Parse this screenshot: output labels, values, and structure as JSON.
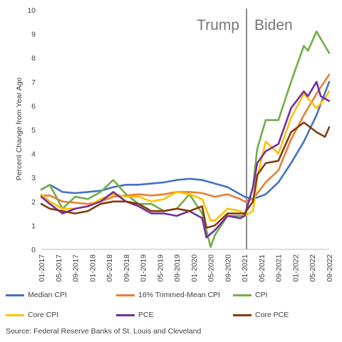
{
  "chart_data": {
    "type": "line",
    "title": "",
    "xlabel": "",
    "ylabel": "Percent Change from Year Ago",
    "ylim": [
      0,
      10
    ],
    "yticks": [
      0,
      1,
      2,
      3,
      4,
      5,
      6,
      7,
      8,
      9,
      10
    ],
    "x_start": "2017-01",
    "x_end": "2022-09",
    "x_tick_labels": [
      "01-2017",
      "05-2017",
      "09-2017",
      "01-2018",
      "05-2018",
      "09-2018",
      "01-2019",
      "05-2019",
      "09-2019",
      "01-2020",
      "05-2020",
      "09-2020",
      "01-2021",
      "05-2021",
      "09-2021",
      "01-2022",
      "05-2022",
      "09-2022"
    ],
    "grid": false,
    "divider_month": "2021-01",
    "annotations": [
      {
        "text": "Trump",
        "position": "left of divider"
      },
      {
        "text": "Biden",
        "position": "right of divider"
      }
    ],
    "legend_position": "bottom",
    "series": [
      {
        "name": "Median CPI",
        "color": "#4472C4",
        "points": [
          [
            "2017-01",
            2.5
          ],
          [
            "2017-03",
            2.7
          ],
          [
            "2017-06",
            2.4
          ],
          [
            "2017-09",
            2.35
          ],
          [
            "2017-12",
            2.4
          ],
          [
            "2018-03",
            2.45
          ],
          [
            "2018-06",
            2.6
          ],
          [
            "2018-09",
            2.7
          ],
          [
            "2018-12",
            2.7
          ],
          [
            "2019-03",
            2.75
          ],
          [
            "2019-06",
            2.8
          ],
          [
            "2019-09",
            2.9
          ],
          [
            "2019-12",
            2.95
          ],
          [
            "2020-03",
            2.9
          ],
          [
            "2020-06",
            2.75
          ],
          [
            "2020-09",
            2.6
          ],
          [
            "2020-12",
            2.3
          ],
          [
            "2021-01",
            2.2
          ],
          [
            "2021-03",
            2.1
          ],
          [
            "2021-06",
            2.3
          ],
          [
            "2021-09",
            2.8
          ],
          [
            "2021-12",
            3.6
          ],
          [
            "2022-03",
            4.5
          ],
          [
            "2022-06",
            5.6
          ],
          [
            "2022-09",
            7.0
          ]
        ]
      },
      {
        "name": "16% Trimmed-Mean CPI",
        "color": "#ED7D31",
        "points": [
          [
            "2017-01",
            2.25
          ],
          [
            "2017-03",
            2.25
          ],
          [
            "2017-06",
            2.0
          ],
          [
            "2017-09",
            1.95
          ],
          [
            "2017-12",
            1.9
          ],
          [
            "2018-03",
            2.0
          ],
          [
            "2018-06",
            2.2
          ],
          [
            "2018-09",
            2.25
          ],
          [
            "2018-12",
            2.3
          ],
          [
            "2019-03",
            2.25
          ],
          [
            "2019-06",
            2.3
          ],
          [
            "2019-09",
            2.4
          ],
          [
            "2019-12",
            2.4
          ],
          [
            "2020-03",
            2.35
          ],
          [
            "2020-06",
            2.2
          ],
          [
            "2020-09",
            2.3
          ],
          [
            "2020-12",
            2.1
          ],
          [
            "2021-01",
            2.0
          ],
          [
            "2021-03",
            2.1
          ],
          [
            "2021-06",
            2.8
          ],
          [
            "2021-09",
            3.3
          ],
          [
            "2021-12",
            4.6
          ],
          [
            "2022-03",
            5.6
          ],
          [
            "2022-06",
            6.5
          ],
          [
            "2022-09",
            7.3
          ]
        ]
      },
      {
        "name": "CPI",
        "color": "#70AD47",
        "points": [
          [
            "2017-01",
            2.5
          ],
          [
            "2017-03",
            2.7
          ],
          [
            "2017-06",
            1.7
          ],
          [
            "2017-09",
            2.2
          ],
          [
            "2017-12",
            2.1
          ],
          [
            "2018-03",
            2.4
          ],
          [
            "2018-06",
            2.9
          ],
          [
            "2018-09",
            2.3
          ],
          [
            "2018-12",
            1.9
          ],
          [
            "2019-03",
            1.9
          ],
          [
            "2019-06",
            1.6
          ],
          [
            "2019-09",
            1.7
          ],
          [
            "2019-12",
            2.3
          ],
          [
            "2020-03",
            1.5
          ],
          [
            "2020-05",
            0.1
          ],
          [
            "2020-06",
            0.6
          ],
          [
            "2020-09",
            1.4
          ],
          [
            "2020-12",
            1.4
          ],
          [
            "2021-01",
            1.4
          ],
          [
            "2021-03",
            2.6
          ],
          [
            "2021-04",
            4.2
          ],
          [
            "2021-06",
            5.4
          ],
          [
            "2021-09",
            5.4
          ],
          [
            "2021-12",
            7.0
          ],
          [
            "2022-03",
            8.5
          ],
          [
            "2022-04",
            8.3
          ],
          [
            "2022-06",
            9.1
          ],
          [
            "2022-09",
            8.2
          ]
        ]
      },
      {
        "name": "Core CPI",
        "color": "#FFC000",
        "points": [
          [
            "2017-01",
            2.3
          ],
          [
            "2017-03",
            2.0
          ],
          [
            "2017-06",
            1.7
          ],
          [
            "2017-09",
            1.7
          ],
          [
            "2017-12",
            1.8
          ],
          [
            "2018-03",
            2.1
          ],
          [
            "2018-06",
            2.3
          ],
          [
            "2018-09",
            2.2
          ],
          [
            "2018-12",
            2.2
          ],
          [
            "2019-03",
            2.0
          ],
          [
            "2019-06",
            2.1
          ],
          [
            "2019-09",
            2.4
          ],
          [
            "2019-12",
            2.3
          ],
          [
            "2020-03",
            2.1
          ],
          [
            "2020-05",
            1.2
          ],
          [
            "2020-06",
            1.2
          ],
          [
            "2020-09",
            1.7
          ],
          [
            "2020-12",
            1.6
          ],
          [
            "2021-01",
            1.4
          ],
          [
            "2021-03",
            1.6
          ],
          [
            "2021-04",
            3.0
          ],
          [
            "2021-06",
            4.5
          ],
          [
            "2021-09",
            4.0
          ],
          [
            "2021-12",
            5.5
          ],
          [
            "2022-03",
            6.5
          ],
          [
            "2022-06",
            5.9
          ],
          [
            "2022-08",
            6.3
          ],
          [
            "2022-09",
            6.6
          ]
        ]
      },
      {
        "name": "PCE",
        "color": "#7030A0",
        "points": [
          [
            "2017-01",
            2.2
          ],
          [
            "2017-03",
            1.9
          ],
          [
            "2017-06",
            1.5
          ],
          [
            "2017-09",
            1.7
          ],
          [
            "2017-12",
            1.8
          ],
          [
            "2018-03",
            2.0
          ],
          [
            "2018-06",
            2.4
          ],
          [
            "2018-09",
            2.0
          ],
          [
            "2018-12",
            1.8
          ],
          [
            "2019-03",
            1.5
          ],
          [
            "2019-06",
            1.5
          ],
          [
            "2019-09",
            1.4
          ],
          [
            "2019-12",
            1.6
          ],
          [
            "2020-03",
            1.3
          ],
          [
            "2020-04",
            0.5
          ],
          [
            "2020-06",
            0.8
          ],
          [
            "2020-09",
            1.4
          ],
          [
            "2020-12",
            1.3
          ],
          [
            "2021-01",
            1.4
          ],
          [
            "2021-03",
            2.6
          ],
          [
            "2021-04",
            3.6
          ],
          [
            "2021-06",
            4.1
          ],
          [
            "2021-09",
            4.4
          ],
          [
            "2021-12",
            5.9
          ],
          [
            "2022-03",
            6.6
          ],
          [
            "2022-04",
            6.4
          ],
          [
            "2022-06",
            7.0
          ],
          [
            "2022-07",
            6.4
          ],
          [
            "2022-09",
            6.2
          ]
        ]
      },
      {
        "name": "Core PCE",
        "color": "#843C0C",
        "points": [
          [
            "2017-01",
            1.9
          ],
          [
            "2017-03",
            1.7
          ],
          [
            "2017-06",
            1.6
          ],
          [
            "2017-09",
            1.5
          ],
          [
            "2017-12",
            1.6
          ],
          [
            "2018-03",
            1.9
          ],
          [
            "2018-06",
            2.0
          ],
          [
            "2018-09",
            2.0
          ],
          [
            "2018-12",
            1.9
          ],
          [
            "2019-03",
            1.6
          ],
          [
            "2019-06",
            1.6
          ],
          [
            "2019-09",
            1.7
          ],
          [
            "2019-12",
            1.6
          ],
          [
            "2020-03",
            1.8
          ],
          [
            "2020-04",
            0.9
          ],
          [
            "2020-06",
            1.0
          ],
          [
            "2020-09",
            1.5
          ],
          [
            "2020-12",
            1.5
          ],
          [
            "2021-01",
            1.5
          ],
          [
            "2021-03",
            2.0
          ],
          [
            "2021-04",
            3.1
          ],
          [
            "2021-06",
            3.6
          ],
          [
            "2021-09",
            3.7
          ],
          [
            "2021-12",
            4.9
          ],
          [
            "2022-03",
            5.3
          ],
          [
            "2022-06",
            4.9
          ],
          [
            "2022-08",
            4.7
          ],
          [
            "2022-09",
            5.1
          ]
        ]
      }
    ]
  },
  "labels": {
    "trump": "Trump",
    "biden": "Biden",
    "ylabel": "Percent Change from Year Ago"
  },
  "legend": [
    {
      "name": "Median CPI",
      "color": "#4472C4"
    },
    {
      "name": "16% Trimmed-Mean CPI",
      "color": "#ED7D31"
    },
    {
      "name": "CPI",
      "color": "#70AD47"
    },
    {
      "name": "Core CPI",
      "color": "#FFC000"
    },
    {
      "name": "PCE",
      "color": "#7030A0"
    },
    {
      "name": "Core PCE",
      "color": "#843C0C"
    }
  ],
  "source": "Source: Federal Reserve Banks of St. Louis and Cleveland"
}
